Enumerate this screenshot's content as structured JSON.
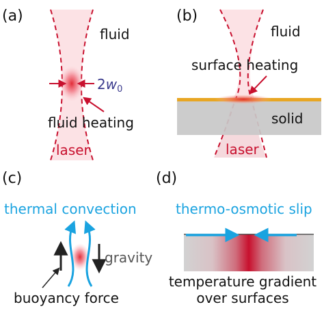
{
  "panels": {
    "a": {
      "tag": "(a)",
      "fluid": "fluid",
      "waist": "2",
      "waist_var": "w",
      "waist_sub": "0",
      "heating": "fluid heating",
      "laser": "laser"
    },
    "b": {
      "tag": "(b)",
      "fluid": "fluid",
      "heating": "surface heating",
      "solid": "solid",
      "laser": "laser"
    },
    "c": {
      "tag": "(c)",
      "title": "thermal convection",
      "gravity": "gravity",
      "buoyancy": "buoyancy force"
    },
    "d": {
      "tag": "(d)",
      "title": "thermo-osmotic slip",
      "caption_line1": "temperature gradient",
      "caption_line2": "over surfaces"
    }
  },
  "colors": {
    "laser": "#c8102e",
    "laser_fill": "#f9d3d8",
    "accent_blue": "#1aa3e0",
    "waist_label": "#3a3a8c",
    "surface": "#e8a623",
    "solid": "#c8c8c8",
    "text": "#111111"
  }
}
